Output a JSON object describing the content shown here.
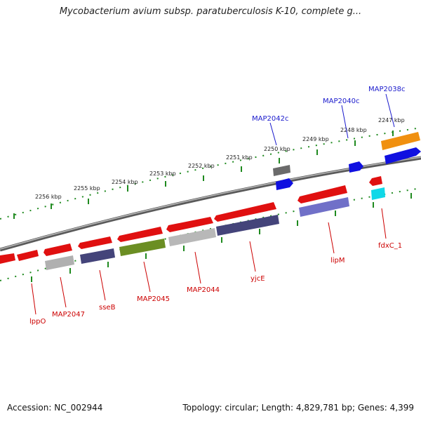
{
  "title": "Mycobacterium avium subsp. paratuberculosis K-10, complete g...",
  "footer": {
    "accession": "Accession: NC_002944",
    "topology": "Topology: circular; Length: 4,829,781 bp; Genes: 4,399"
  },
  "colors": {
    "backbone": "#7a7a7a",
    "tick": "#1f8a1f",
    "label_red": "#cc0000",
    "label_blue": "#1a1acc",
    "red": "#e01010",
    "gray": "#b0b0b0",
    "dark_gray": "#6a6a6a",
    "navy": "#44447a",
    "olive": "#6b8e23",
    "lavender": "#7070c8",
    "blue": "#1010e0",
    "orange": "#f0900a",
    "cyan": "#10d8e8"
  },
  "scale_labels": [
    "2256 kbp",
    "2255 kbp",
    "2254 kbp",
    "2253 kbp",
    "2252 kbp",
    "2251 kbp",
    "2250 kbp",
    "2249 kbp",
    "2248 kbp",
    "2247 kbp"
  ],
  "genes_red_labels": [
    "lppO",
    "MAP2047",
    "sseB",
    "MAP2045",
    "MAP2044",
    "yjcE",
    "lipM",
    "fdxC_1"
  ],
  "genes_blue_labels": [
    "MAP2042c",
    "MAP2040c",
    "MAP2038c"
  ]
}
